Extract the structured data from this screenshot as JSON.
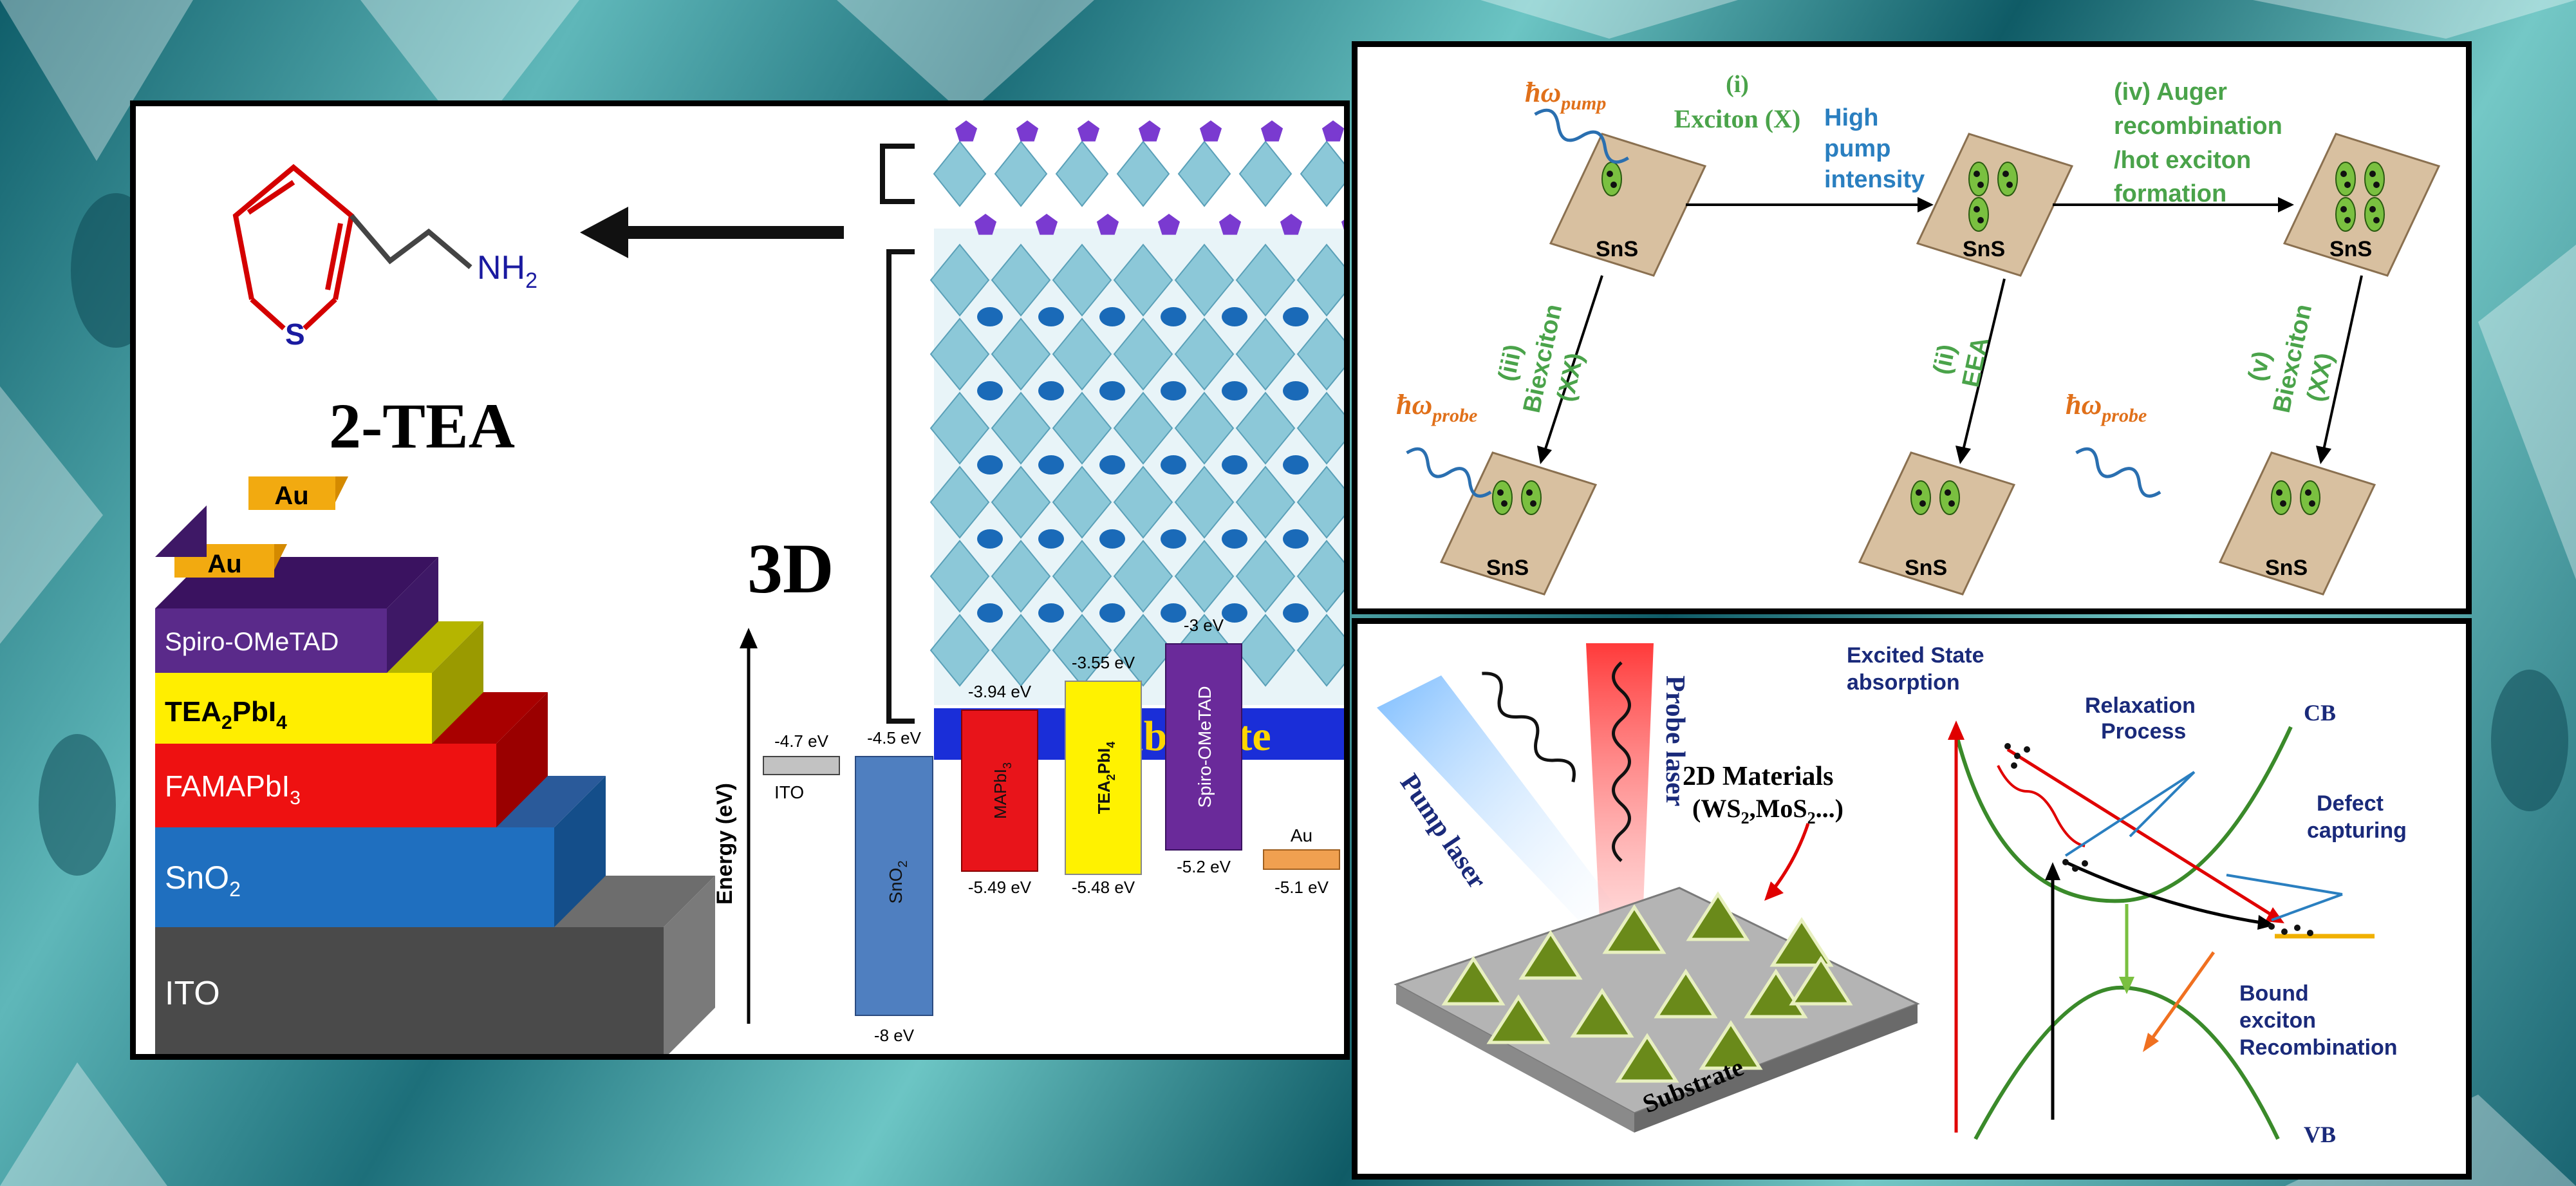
{
  "left_panel": {
    "molecule_label": "2-TEA",
    "molecule_sulfur": "S",
    "molecule_amine": "NH",
    "molecule_amine_sub": "2",
    "label_3d": "3D",
    "substrate_label": "Substrate",
    "stack_layers": [
      {
        "label": "Au"
      },
      {
        "label": "Au"
      },
      {
        "label": "Spiro-OMeTAD"
      },
      {
        "label": "TEA",
        "sub": "2",
        "suffix": "PbI",
        "sub2": "4"
      },
      {
        "label": "FAMAPbI",
        "sub": "3"
      },
      {
        "label": "SnO",
        "sub": "2"
      },
      {
        "label": "ITO"
      }
    ],
    "energy_axis_label": "Energy (eV)",
    "energy_levels": [
      {
        "name": "ITO",
        "top": "-4.7 eV",
        "bottom": "",
        "color": "#b0b0b0"
      },
      {
        "name": "SnO2",
        "top": "-4.5 eV",
        "bottom": "-8 eV",
        "color": "#4f7fc0"
      },
      {
        "name": "MAPbI3",
        "top": "-3.94 eV",
        "bottom": "-5.49 eV",
        "color": "#e8141a"
      },
      {
        "name": "TEA2PbI4",
        "top": "-3.55 eV",
        "bottom": "-5.48 eV",
        "color": "#fff200"
      },
      {
        "name": "Spiro-OMeTAD",
        "top": "-3 eV",
        "bottom": "-5.2 eV",
        "color": "#6a2a9a"
      },
      {
        "name": "Au",
        "top": "",
        "bottom": "-5.1 eV",
        "color": "#f0a050"
      }
    ]
  },
  "top_right_panel": {
    "pump_symbol": "ħω",
    "pump_sub": "pump",
    "probe_symbol": "ħω",
    "probe_sub": "probe",
    "step_i": "(i)",
    "step_i_label": "Exciton (X)",
    "high_pump": [
      "High",
      "pump",
      "intensity"
    ],
    "step_iv": [
      "(iv) Auger",
      "recombination",
      "/hot exciton",
      "formation"
    ],
    "step_iii": [
      "(iii)",
      "Biexciton",
      "(XX)"
    ],
    "step_ii": [
      "(ii)",
      "EEA"
    ],
    "step_v": [
      "(v)",
      "Biexciton",
      "(XX)"
    ],
    "material": "SnS"
  },
  "bottom_right_panel": {
    "pump_laser": "Pump laser",
    "probe_laser": "Probe laser",
    "materials_title": "2D Materials",
    "materials_formula": "(WS2,MoS2...)",
    "substrate": "Substrate",
    "excited_state": [
      "Excited State",
      "absorption"
    ],
    "relaxation": [
      "Relaxation",
      "Process"
    ],
    "cb": "CB",
    "vb": "VB",
    "defect": [
      "Defect",
      "capturing"
    ],
    "bound": [
      "Bound",
      "exciton",
      "Recombination"
    ]
  }
}
